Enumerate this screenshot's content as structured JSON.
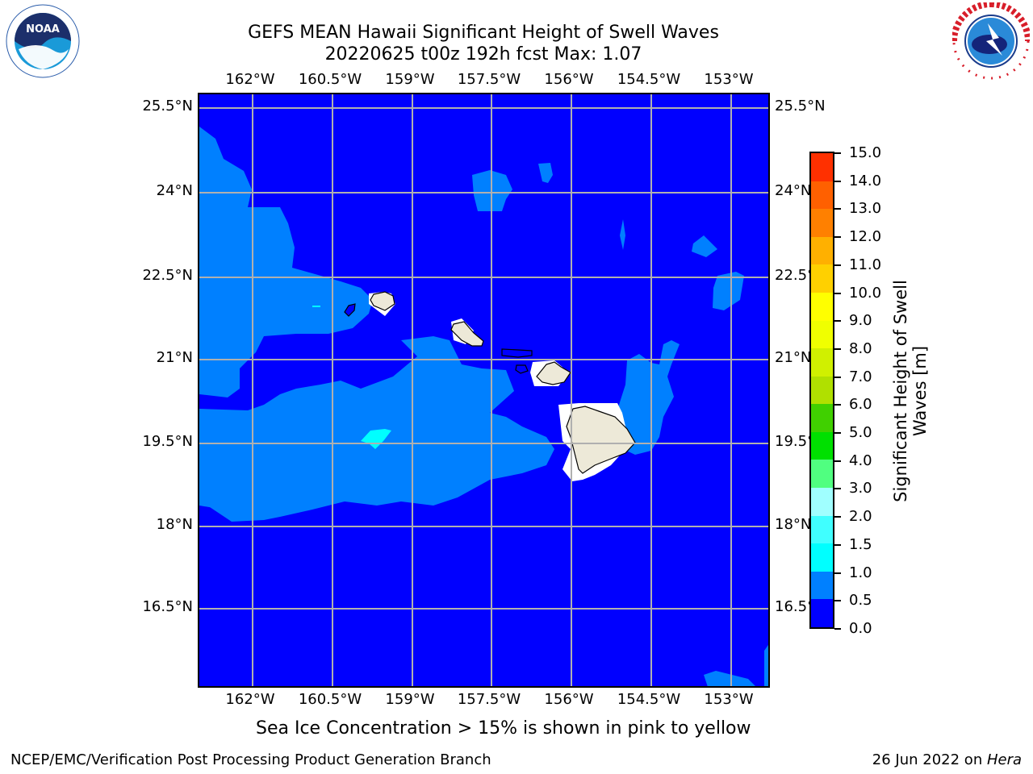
{
  "header": {
    "title": "GEFS MEAN Hawaii Significant Height of Swell Waves",
    "subtitle": "20220625 t00z 192h fcst   Max: 1.07"
  },
  "map": {
    "lon_labels": [
      "162°W",
      "160.5°W",
      "159°W",
      "157.5°W",
      "156°W",
      "154.5°W",
      "153°W"
    ],
    "lat_labels": [
      "25.5°N",
      "24°N",
      "22.5°N",
      "21°N",
      "19.5°N",
      "18°N",
      "16.5°N"
    ],
    "right_lat_labels": [
      "25.5°N",
      "24°N",
      "22.5°N",
      "21°N",
      "19.5°N",
      "18°N",
      "16.5°N"
    ],
    "extent": {
      "lon_min": -163.0,
      "lon_max": -152.2,
      "lat_min": 14.8,
      "lat_max": 25.75
    },
    "grid": true,
    "colors": {
      "deep_blue": "#0000ff",
      "light_blue": "#0080ff",
      "cyan": "#00ffff",
      "land": "#ede9d8",
      "grid": "#b0b0b0"
    }
  },
  "colorbar": {
    "labels": [
      "15.0",
      "14.0",
      "13.0",
      "12.0",
      "11.0",
      "10.0",
      "9.0",
      "8.0",
      "7.0",
      "6.0",
      "5.0",
      "4.0",
      "3.0",
      "2.0",
      "1.5",
      "1.0",
      "0.5",
      "0.0"
    ],
    "levels": [
      0.0,
      0.5,
      1.0,
      1.5,
      2.0,
      3.0,
      4.0,
      5.0,
      6.0,
      7.0,
      8.0,
      9.0,
      10.0,
      11.0,
      12.0,
      13.0,
      14.0,
      15.0
    ],
    "colors": [
      "#0000ff",
      "#0080ff",
      "#00ffff",
      "#40ffff",
      "#a0ffff",
      "#50ff80",
      "#00e000",
      "#40d000",
      "#b0e000",
      "#d0f000",
      "#f0ff00",
      "#ffff00",
      "#ffd000",
      "#ffb000",
      "#ff8000",
      "#ff6000",
      "#ff3000",
      "#ff0000"
    ],
    "title": "Significant Height of Swell Waves [m]"
  },
  "note": "Sea Ice Concentration > 15% is shown in pink to yellow",
  "footer": {
    "left": "NCEP/EMC/Verification Post Processing Product Generation Branch",
    "date": "26 Jun 2022 on ",
    "machine": "Hera"
  },
  "logos": {
    "left": "noaa-logo",
    "right": "nws-logo",
    "left_text": "NOAA",
    "right_text": "NATIONAL WEATHER SERVICE"
  }
}
